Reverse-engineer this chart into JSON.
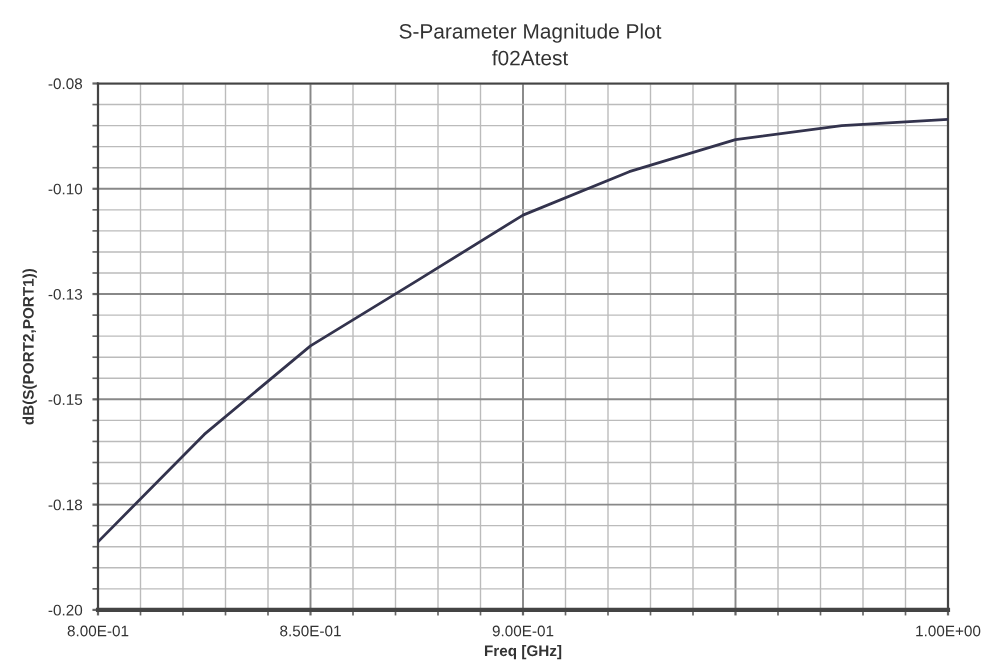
{
  "chart_data": {
    "type": "line",
    "title": "S-Parameter Magnitude Plot",
    "subtitle": "f02Atest",
    "xlabel": "Freq [GHz]",
    "ylabel": "dB(S(PORT2,PORT1))",
    "series": [
      {
        "color": "#33334d",
        "x": [
          0.8,
          0.825,
          0.85,
          0.875,
          0.9,
          0.925,
          0.95,
          0.975,
          1.0
        ],
        "values": [
          -0.1845,
          -0.16,
          -0.1398,
          -0.125,
          -0.11,
          -0.1001,
          -0.0928,
          -0.0896,
          -0.0882
        ]
      }
    ],
    "xlim": [
      0.8,
      1.0
    ],
    "ylim": [
      -0.2,
      -0.08
    ],
    "xticks": [
      {
        "value": 0.8,
        "label": "8.00E-01"
      },
      {
        "value": 0.85,
        "label": "8.50E-01"
      },
      {
        "value": 0.9,
        "label": "9.00E-01"
      },
      {
        "value": 0.95,
        "label": null
      },
      {
        "value": 1.0,
        "label": "1.00E+00"
      }
    ],
    "yticks": [
      {
        "value": -0.2,
        "label": "-0.20"
      },
      {
        "value": -0.176,
        "label": "-0.18"
      },
      {
        "value": -0.152,
        "label": "-0.15"
      },
      {
        "value": -0.128,
        "label": "-0.13"
      },
      {
        "value": -0.104,
        "label": "-0.10"
      },
      {
        "value": -0.08,
        "label": "-0.08"
      }
    ],
    "grid": true,
    "marker": "none",
    "line_style": "solid"
  }
}
